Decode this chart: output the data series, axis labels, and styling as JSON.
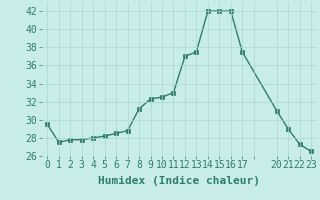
{
  "x": [
    0,
    1,
    2,
    3,
    4,
    5,
    6,
    7,
    8,
    9,
    10,
    11,
    12,
    13,
    14,
    15,
    16,
    17,
    20,
    21,
    22,
    23
  ],
  "y": [
    29.5,
    27.5,
    27.8,
    27.8,
    28.0,
    28.2,
    28.5,
    28.8,
    31.2,
    32.3,
    32.5,
    33.0,
    37.0,
    37.5,
    42.0,
    42.0,
    42.0,
    37.5,
    31.0,
    29.0,
    27.3,
    26.5
  ],
  "line_color": "#2e7d6e",
  "marker_color": "#2e7d6e",
  "bg_color": "#c8ecea",
  "grid_color": "#b0d5d2",
  "xlabel": "Humidex (Indice chaleur)",
  "xlim": [
    -0.5,
    23.5
  ],
  "ylim": [
    26,
    43
  ],
  "yticks": [
    26,
    28,
    30,
    32,
    34,
    36,
    38,
    40,
    42
  ],
  "xtick_labels": [
    "0",
    "1",
    "2",
    "3",
    "4",
    "5",
    "6",
    "7",
    "8",
    "9",
    "10",
    "11",
    "12",
    "13",
    "14",
    "15",
    "16",
    "17",
    "",
    "20",
    "21",
    "22",
    "23"
  ],
  "xtick_positions": [
    0,
    1,
    2,
    3,
    4,
    5,
    6,
    7,
    8,
    9,
    10,
    11,
    12,
    13,
    14,
    15,
    16,
    17,
    18,
    20,
    21,
    22,
    23
  ],
  "font_color": "#2e7d6e",
  "font_size": 7,
  "xlabel_font_size": 8,
  "linewidth": 1.0,
  "markersize": 2.5
}
